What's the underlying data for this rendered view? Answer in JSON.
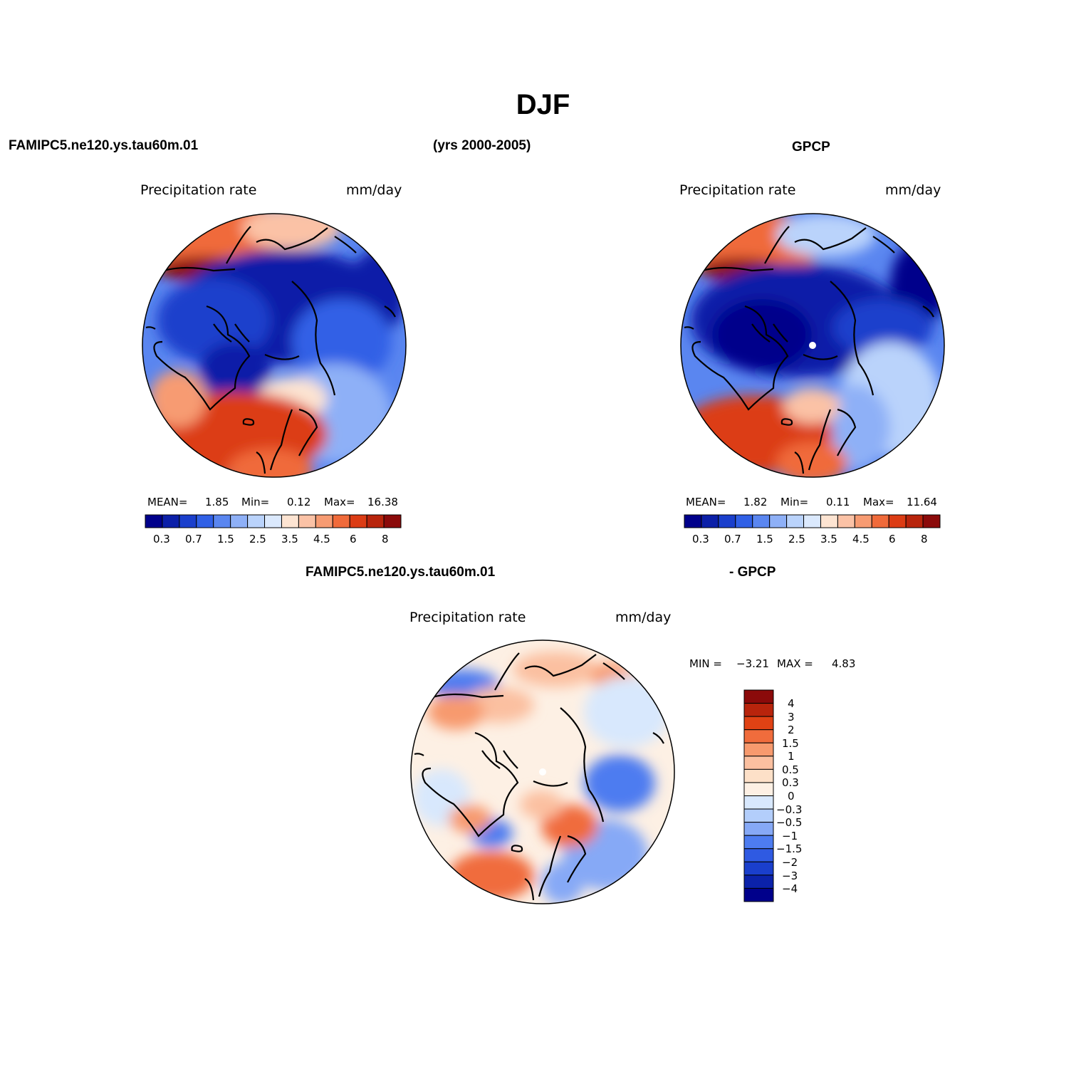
{
  "title": "DJF",
  "header": {
    "left": "FAMIPC5.ne120.ys.tau60m.01",
    "center": "(yrs 2000-2005)",
    "right": "GPCP",
    "diff_left": "FAMIPC5.ne120.ys.tau60m.01",
    "diff_right": "- GPCP"
  },
  "colors": {
    "precip_scale": [
      "#00008b",
      "#0b1fa8",
      "#1a3fcc",
      "#3060e6",
      "#5a86f0",
      "#8eb0f7",
      "#bad3fb",
      "#dbe9fd",
      "#fde4d2",
      "#fbc2a6",
      "#f79b72",
      "#f06a3a",
      "#dc3c14",
      "#b8240c",
      "#8b0a0a"
    ],
    "diff_scale": [
      "#00008b",
      "#0b22aa",
      "#1a3fcc",
      "#2f5ae2",
      "#4d7cf0",
      "#86a9f6",
      "#b3cefb",
      "#d8e8fd",
      "#fdf0e4",
      "#fde0c8",
      "#fbc0a0",
      "#f79a6e",
      "#f06c3c",
      "#e04214",
      "#b8240c",
      "#8b0a0a"
    ]
  },
  "panels": [
    {
      "id": "model",
      "label_left": "Precipitation  rate",
      "label_right": "mm/day",
      "stats": {
        "mean_label": "MEAN=",
        "mean": "1.85",
        "min_label": "Min=",
        "min": "0.12",
        "max_label": "Max=",
        "max": "16.38"
      },
      "colorbar_ticks": [
        "0.3",
        "0.7",
        "1.5",
        "2.5",
        "3.5",
        "4.5",
        "6",
        "8"
      ]
    },
    {
      "id": "obs",
      "label_left": "Precipitation  rate",
      "label_right": "mm/day",
      "stats": {
        "mean_label": "MEAN=",
        "mean": "1.82",
        "min_label": "Min=",
        "min": "0.11",
        "max_label": "Max=",
        "max": "11.64"
      },
      "colorbar_ticks": [
        "0.3",
        "0.7",
        "1.5",
        "2.5",
        "3.5",
        "4.5",
        "6",
        "8"
      ]
    },
    {
      "id": "diff",
      "label_left": "Precipitation  rate",
      "label_right": "mm/day",
      "stats": {
        "min_label": "MIN =",
        "min": "−3.21",
        "max_label": "MAX =",
        "max": "4.83"
      },
      "colorbar_ticks": [
        "4",
        "3",
        "2",
        "1.5",
        "1",
        "0.5",
        "0.3",
        "0",
        "−0.3",
        "−0.5",
        "−1",
        "−1.5",
        "−2",
        "−3",
        "−4"
      ]
    }
  ]
}
